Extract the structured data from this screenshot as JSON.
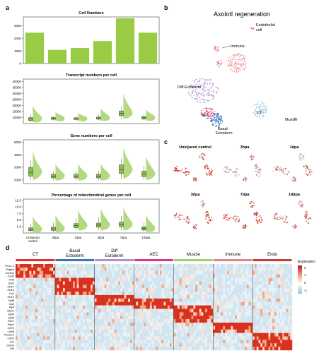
{
  "panel_letters": [
    "a",
    "b",
    "c",
    "d"
  ],
  "colors": {
    "bar_green": "#99cc44",
    "violin_green": "#a6d36a",
    "box_fill": "#8cbf4a",
    "heat_red": "#d7191c",
    "heat_blue": "#9ecae1",
    "panel_border": "#444444"
  },
  "panel_a": {
    "charts": [
      {
        "title": "Cell Numbers",
        "y_ticks": [
          "0",
          "1000",
          "2000",
          "3000"
        ],
        "ylim": [
          0,
          3700
        ],
        "values": [
          2450,
          1080,
          1230,
          1780,
          3600,
          2450
        ]
      },
      {
        "title": "Transcript numbers per cell",
        "y_ticks": [
          "10000",
          "15000",
          "20000",
          "25000",
          "30000",
          "35000",
          "40000"
        ],
        "ylim": [
          5000,
          42000
        ],
        "boxes": [
          {
            "q1": 7500,
            "med": 8800,
            "q3": 10000,
            "lo": 6000,
            "hi": 12500
          },
          {
            "q1": 8500,
            "med": 9200,
            "q3": 10000,
            "lo": 7300,
            "hi": 11500
          },
          {
            "q1": 8300,
            "med": 9000,
            "q3": 9800,
            "lo": 7300,
            "hi": 11000
          },
          {
            "q1": 8600,
            "med": 9600,
            "q3": 10500,
            "lo": 7500,
            "hi": 12500
          },
          {
            "q1": 11500,
            "med": 13500,
            "q3": 15500,
            "lo": 9000,
            "hi": 19000
          },
          {
            "q1": 8800,
            "med": 9800,
            "q3": 10800,
            "lo": 7500,
            "hi": 12500
          }
        ],
        "violin_tops": [
          20000,
          15000,
          14000,
          18000,
          30000,
          17000
        ]
      },
      {
        "title": "Gene numbers per cell",
        "y_ticks": [
          "2000",
          "3000",
          "4000",
          "5000"
        ],
        "ylim": [
          1700,
          5200
        ],
        "boxes": [
          {
            "q1": 2300,
            "med": 2600,
            "q3": 3000,
            "lo": 2000,
            "hi": 3600
          },
          {
            "q1": 2150,
            "med": 2300,
            "q3": 2450,
            "lo": 1950,
            "hi": 2700
          },
          {
            "q1": 2150,
            "med": 2300,
            "q3": 2450,
            "lo": 1950,
            "hi": 2700
          },
          {
            "q1": 2150,
            "med": 2300,
            "q3": 2450,
            "lo": 1950,
            "hi": 2700
          },
          {
            "q1": 2500,
            "med": 2800,
            "q3": 3200,
            "lo": 2100,
            "hi": 3700
          },
          {
            "q1": 2250,
            "med": 2450,
            "q3": 2700,
            "lo": 2000,
            "hi": 3100
          }
        ],
        "violin_tops": [
          4300,
          3300,
          3300,
          3300,
          4600,
          3900
        ]
      },
      {
        "title": "Percentage of mitochondrial genes per cell",
        "y_ticks": [
          "2.5",
          "5.0",
          "7.5",
          "10.0",
          "12.5"
        ],
        "ylim": [
          0,
          13
        ],
        "boxes": [
          {
            "q1": 0.9,
            "med": 1.4,
            "q3": 2.0,
            "lo": 0.3,
            "hi": 3.5
          },
          {
            "q1": 1.0,
            "med": 1.6,
            "q3": 2.3,
            "lo": 0.4,
            "hi": 4.0
          },
          {
            "q1": 2.0,
            "med": 2.8,
            "q3": 3.6,
            "lo": 1.0,
            "hi": 5.5
          },
          {
            "q1": 2.2,
            "med": 3.0,
            "q3": 3.8,
            "lo": 1.0,
            "hi": 6.0
          },
          {
            "q1": 2.4,
            "med": 3.2,
            "q3": 4.2,
            "lo": 1.0,
            "hi": 6.5
          },
          {
            "q1": 1.1,
            "med": 1.7,
            "q3": 2.4,
            "lo": 0.4,
            "hi": 4.0
          }
        ],
        "violin_tops": [
          6.5,
          7.0,
          9.0,
          9.5,
          10.0,
          7.0
        ]
      }
    ],
    "x_labels": [
      {
        "l1": "Uninjured",
        "l2": "control"
      },
      {
        "l1": "3hpa",
        "l2": ""
      },
      {
        "l1": "1dpa",
        "l2": ""
      },
      {
        "l1": "3dpa",
        "l2": ""
      },
      {
        "l1": "7dpa",
        "l2": ""
      },
      {
        "l1": "14dpa",
        "l2": ""
      }
    ]
  },
  "panel_b": {
    "title": "Axolotl regeneration",
    "labels": {
      "endothelial_1": "Endothelial",
      "endothelial_2": "cell",
      "immune": "Immune",
      "diff_ectoderm": "Diff.Ectoderm",
      "aec": "AEC",
      "ct": "CT",
      "basal_1": "Basal",
      "basal_2": "Ectoderm",
      "muscle": "Muscle"
    }
  },
  "panel_c": {
    "titles": [
      "Uninjured control",
      "3hpa",
      "1dpa",
      "3dpa",
      "7dpa",
      "14dpa"
    ]
  },
  "panel_d": {
    "column_groups": [
      {
        "label": "CT",
        "label2": "",
        "color": "#e4312b"
      },
      {
        "label": "Basal",
        "label2": "Ectoderm",
        "color": "#3b76bb"
      },
      {
        "label": "Diff",
        "label2": "Ectoderm",
        "color": "#b18fd0"
      },
      {
        "label": "AEC",
        "label2": "",
        "color": "#d9338e"
      },
      {
        "label": "Muscle",
        "label2": "",
        "color": "#9bd174"
      },
      {
        "label": "Immune",
        "label2": "",
        "color": "#e8838a"
      },
      {
        "label": "Endo",
        "label2": "",
        "color": "#c93b3b"
      }
    ],
    "genes": [
      "Prrx1.2",
      "Pdgfra",
      "Col1a1",
      "Cx43",
      "Krt5",
      "Tp63",
      "Krt17",
      "Krt14",
      "Fn1",
      "Krt12",
      "Fgf8",
      "Sp9",
      "Mylf",
      "Myh1",
      "Myf5",
      "Myf6",
      "Pax7",
      "Ptprc",
      "Cd74",
      "Cd68",
      "Pecam1",
      "Cdh5",
      "Kdr",
      "Cldn5",
      "Tek"
    ],
    "legend": {
      "title": "Expression",
      "ticks": [
        "2",
        "1",
        "0",
        "-1"
      ]
    }
  }
}
